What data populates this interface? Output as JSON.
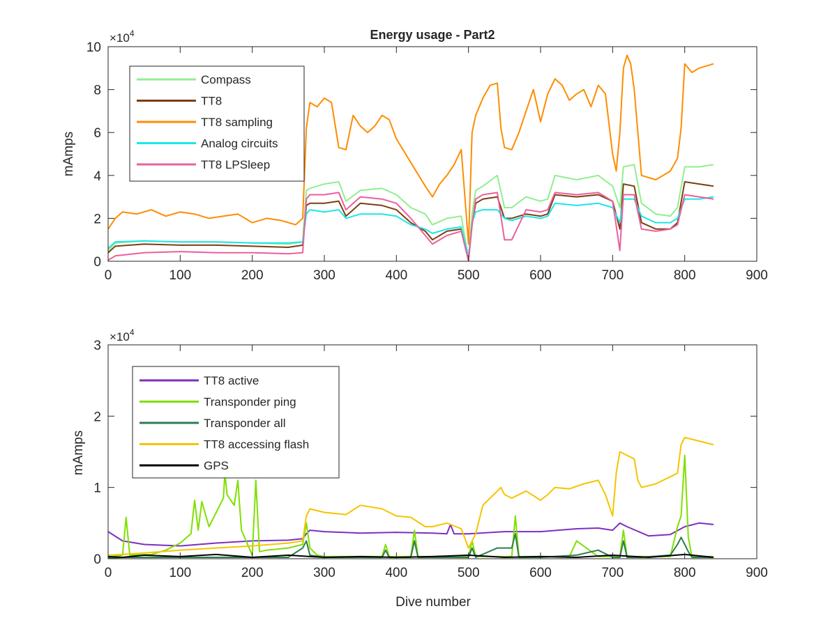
{
  "figure": {
    "title": "Energy usage - Part2"
  },
  "chart_data": [
    {
      "type": "line",
      "title": "Energy usage - Part2",
      "xlabel": "",
      "ylabel": "mAmps",
      "xlim": [
        0,
        900
      ],
      "ylim": [
        0,
        100000
      ],
      "x_ticks": [
        0,
        100,
        200,
        300,
        400,
        500,
        600,
        700,
        800,
        900
      ],
      "y_ticks": [
        0,
        2,
        4,
        6,
        8,
        10
      ],
      "y_tick_labels": [
        "0",
        "2",
        "4",
        "6",
        "8",
        "10"
      ],
      "y_multiplier": "×10",
      "y_multiplier_exp": "4",
      "grid": false,
      "legend_position": "top-left",
      "series": [
        {
          "name": "Compass",
          "color": "#90ee90",
          "x": [
            0,
            10,
            50,
            100,
            150,
            200,
            250,
            270,
            275,
            280,
            300,
            320,
            330,
            350,
            380,
            400,
            420,
            440,
            450,
            470,
            490,
            500,
            505,
            510,
            520,
            540,
            550,
            560,
            580,
            600,
            610,
            620,
            650,
            680,
            700,
            710,
            715,
            730,
            740,
            760,
            780,
            790,
            800,
            820,
            840
          ],
          "y": [
            5000,
            8500,
            9500,
            9000,
            9000,
            8500,
            8000,
            9000,
            33000,
            34000,
            36000,
            37000,
            28000,
            33000,
            34000,
            31000,
            25000,
            22000,
            17000,
            20000,
            21000,
            1000,
            22000,
            33000,
            35000,
            40000,
            25000,
            25000,
            30000,
            28000,
            29000,
            40000,
            38000,
            40000,
            35000,
            25000,
            44000,
            45000,
            27000,
            22000,
            21000,
            25000,
            44000,
            44000,
            45000
          ]
        },
        {
          "name": "TT8",
          "color": "#7b3f10",
          "x": [
            0,
            10,
            50,
            100,
            150,
            200,
            250,
            270,
            275,
            280,
            300,
            320,
            330,
            350,
            380,
            400,
            420,
            440,
            450,
            470,
            490,
            500,
            505,
            510,
            520,
            540,
            550,
            560,
            580,
            600,
            610,
            620,
            650,
            680,
            700,
            710,
            715,
            730,
            740,
            760,
            780,
            790,
            800,
            820,
            840
          ],
          "y": [
            4000,
            7000,
            8000,
            7500,
            7500,
            7000,
            6500,
            7500,
            26000,
            27000,
            27000,
            28000,
            21000,
            27000,
            26000,
            24000,
            18000,
            14000,
            10000,
            14000,
            15000,
            500,
            17000,
            27000,
            29000,
            30000,
            20000,
            20000,
            22000,
            21000,
            22000,
            31000,
            30000,
            31000,
            28000,
            15000,
            36000,
            35000,
            18000,
            15000,
            15000,
            18000,
            37000,
            36000,
            35000
          ]
        },
        {
          "name": "TT8 sampling",
          "color": "#ff8c00",
          "x": [
            0,
            10,
            20,
            40,
            60,
            80,
            100,
            120,
            140,
            160,
            180,
            200,
            220,
            240,
            260,
            270,
            275,
            280,
            290,
            300,
            310,
            320,
            330,
            340,
            350,
            360,
            370,
            380,
            390,
            400,
            420,
            440,
            450,
            460,
            470,
            480,
            490,
            500,
            505,
            510,
            520,
            530,
            540,
            545,
            550,
            560,
            570,
            580,
            590,
            600,
            610,
            620,
            630,
            640,
            650,
            660,
            670,
            680,
            690,
            700,
            705,
            710,
            715,
            720,
            725,
            730,
            740,
            760,
            780,
            790,
            795,
            800,
            810,
            820,
            830,
            840
          ],
          "y": [
            15000,
            20000,
            23000,
            22000,
            24000,
            21000,
            23000,
            22000,
            20000,
            21000,
            22000,
            18000,
            20000,
            19000,
            17000,
            20000,
            62000,
            74000,
            72000,
            76000,
            74000,
            53000,
            52000,
            68000,
            63000,
            60000,
            63000,
            68000,
            66000,
            57000,
            46000,
            35000,
            30000,
            36000,
            40000,
            45000,
            52000,
            8000,
            60000,
            68000,
            76000,
            82000,
            83000,
            62000,
            53000,
            52000,
            60000,
            70000,
            80000,
            65000,
            78000,
            85000,
            82000,
            75000,
            78000,
            80000,
            72000,
            82000,
            78000,
            50000,
            42000,
            60000,
            90000,
            96000,
            92000,
            80000,
            40000,
            38000,
            42000,
            48000,
            62000,
            92000,
            88000,
            90000,
            91000,
            92000
          ]
        },
        {
          "name": "Analog circuits",
          "color": "#1de6e6",
          "x": [
            0,
            10,
            50,
            100,
            150,
            200,
            250,
            270,
            275,
            280,
            300,
            320,
            330,
            350,
            380,
            400,
            420,
            440,
            450,
            470,
            490,
            500,
            505,
            510,
            520,
            540,
            550,
            560,
            580,
            600,
            610,
            620,
            650,
            680,
            700,
            710,
            715,
            730,
            740,
            760,
            780,
            790,
            800,
            820,
            840
          ],
          "y": [
            6000,
            9000,
            9500,
            9000,
            9000,
            8500,
            8500,
            9000,
            22000,
            24000,
            23000,
            24000,
            20000,
            22000,
            22000,
            21000,
            17000,
            15000,
            13000,
            15000,
            16000,
            2000,
            18000,
            23000,
            24000,
            24000,
            20000,
            19000,
            21000,
            20000,
            21000,
            27000,
            26000,
            27000,
            25000,
            18000,
            29000,
            29000,
            21000,
            18000,
            18000,
            20000,
            29000,
            29000,
            30000
          ]
        },
        {
          "name": "TT8 LPSleep",
          "color": "#e9609b",
          "x": [
            0,
            10,
            50,
            100,
            150,
            200,
            250,
            270,
            275,
            280,
            300,
            320,
            330,
            350,
            380,
            400,
            420,
            440,
            450,
            470,
            490,
            500,
            505,
            510,
            520,
            540,
            550,
            560,
            580,
            600,
            610,
            620,
            650,
            680,
            700,
            710,
            715,
            730,
            740,
            760,
            780,
            790,
            800,
            820,
            840
          ],
          "y": [
            500,
            2500,
            4000,
            4500,
            4000,
            4000,
            3500,
            4000,
            29000,
            31000,
            31000,
            32000,
            24000,
            30000,
            29000,
            27000,
            20000,
            12000,
            8000,
            12000,
            14000,
            200,
            17000,
            29000,
            31000,
            32000,
            10000,
            10000,
            24000,
            23000,
            24000,
            32000,
            31000,
            32000,
            28000,
            5000,
            31000,
            31000,
            15000,
            14000,
            15000,
            17000,
            31000,
            30000,
            29000
          ]
        }
      ]
    },
    {
      "type": "line",
      "title": "",
      "xlabel": "Dive number",
      "ylabel": "mAmps",
      "xlim": [
        0,
        900
      ],
      "ylim": [
        0,
        30000
      ],
      "x_ticks": [
        0,
        100,
        200,
        300,
        400,
        500,
        600,
        700,
        800,
        900
      ],
      "y_ticks": [
        0,
        1,
        2,
        3
      ],
      "y_tick_labels": [
        "0",
        "1",
        "2",
        "3"
      ],
      "y_multiplier": "×10",
      "y_multiplier_exp": "4",
      "grid": false,
      "legend_position": "top-left",
      "series": [
        {
          "name": "TT8 active",
          "color": "#7e2fbe",
          "x": [
            0,
            20,
            50,
            100,
            150,
            200,
            250,
            270,
            275,
            280,
            300,
            350,
            400,
            450,
            470,
            475,
            480,
            500,
            550,
            600,
            650,
            680,
            700,
            710,
            720,
            750,
            780,
            800,
            820,
            840
          ],
          "y": [
            3800,
            2500,
            2000,
            1800,
            2200,
            2500,
            2600,
            2800,
            3500,
            4000,
            3800,
            3600,
            3700,
            3600,
            3500,
            4800,
            3500,
            3500,
            3800,
            3800,
            4200,
            4300,
            4000,
            5000,
            4500,
            3200,
            3400,
            4500,
            5000,
            4800
          ]
        },
        {
          "name": "Transponder ping",
          "color": "#7fe000",
          "x": [
            0,
            20,
            25,
            30,
            60,
            80,
            100,
            115,
            120,
            125,
            130,
            140,
            160,
            162,
            165,
            175,
            180,
            182,
            185,
            200,
            205,
            210,
            220,
            250,
            270,
            275,
            280,
            290,
            300,
            350,
            380,
            385,
            390,
            420,
            425,
            430,
            460,
            500,
            505,
            510,
            540,
            560,
            565,
            570,
            580,
            600,
            640,
            650,
            680,
            700,
            710,
            715,
            720,
            740,
            780,
            790,
            795,
            800,
            805,
            810,
            840
          ],
          "y": [
            200,
            500,
            5800,
            500,
            600,
            1200,
            2200,
            3500,
            8200,
            4000,
            8000,
            4500,
            8500,
            12000,
            9000,
            7500,
            11000,
            8000,
            4000,
            500,
            11000,
            1000,
            1200,
            1500,
            2000,
            5000,
            1500,
            500,
            300,
            300,
            300,
            2000,
            300,
            300,
            4000,
            300,
            300,
            300,
            2500,
            300,
            300,
            300,
            6000,
            300,
            300,
            300,
            300,
            2500,
            300,
            300,
            300,
            4000,
            300,
            300,
            300,
            4500,
            6000,
            14500,
            3000,
            300,
            300
          ]
        },
        {
          "name": "Transponder all",
          "color": "#2e7d4f",
          "x": [
            0,
            20,
            50,
            100,
            150,
            200,
            250,
            270,
            275,
            280,
            300,
            350,
            380,
            385,
            390,
            420,
            425,
            430,
            500,
            505,
            510,
            540,
            560,
            565,
            570,
            600,
            650,
            680,
            700,
            710,
            715,
            720,
            740,
            780,
            790,
            795,
            800,
            805,
            810,
            840
          ],
          "y": [
            100,
            200,
            200,
            200,
            200,
            200,
            200,
            1500,
            2500,
            500,
            200,
            200,
            200,
            1200,
            200,
            200,
            2500,
            200,
            200,
            1500,
            200,
            1500,
            1500,
            3500,
            200,
            200,
            500,
            1200,
            200,
            200,
            2500,
            200,
            200,
            500,
            2000,
            3000,
            2000,
            1000,
            200,
            200
          ]
        },
        {
          "name": "TT8 accessing flash",
          "color": "#f5c400",
          "x": [
            0,
            20,
            50,
            100,
            150,
            200,
            250,
            270,
            275,
            280,
            300,
            330,
            350,
            380,
            400,
            420,
            440,
            450,
            470,
            490,
            500,
            510,
            520,
            530,
            545,
            550,
            560,
            580,
            600,
            610,
            620,
            640,
            660,
            680,
            690,
            700,
            705,
            710,
            720,
            730,
            735,
            740,
            760,
            780,
            790,
            795,
            800,
            820,
            840
          ],
          "y": [
            500,
            600,
            800,
            1200,
            1500,
            1800,
            2200,
            2500,
            6000,
            7000,
            6500,
            6200,
            7500,
            7000,
            6000,
            5800,
            4500,
            4500,
            5000,
            4200,
            1500,
            3500,
            7500,
            8500,
            10000,
            9000,
            8500,
            9500,
            8200,
            9000,
            10000,
            9800,
            10500,
            11000,
            9000,
            6000,
            12000,
            15000,
            14500,
            14000,
            11000,
            10000,
            10500,
            11500,
            12000,
            16000,
            17000,
            16500,
            16000
          ]
        },
        {
          "name": "GPS",
          "color": "#000000",
          "x": [
            0,
            20,
            50,
            100,
            150,
            200,
            250,
            280,
            300,
            350,
            400,
            450,
            500,
            550,
            600,
            650,
            700,
            730,
            750,
            800,
            840
          ],
          "y": [
            300,
            200,
            500,
            300,
            600,
            200,
            500,
            300,
            200,
            300,
            200,
            300,
            500,
            200,
            300,
            200,
            500,
            300,
            200,
            600,
            200
          ]
        }
      ]
    }
  ]
}
